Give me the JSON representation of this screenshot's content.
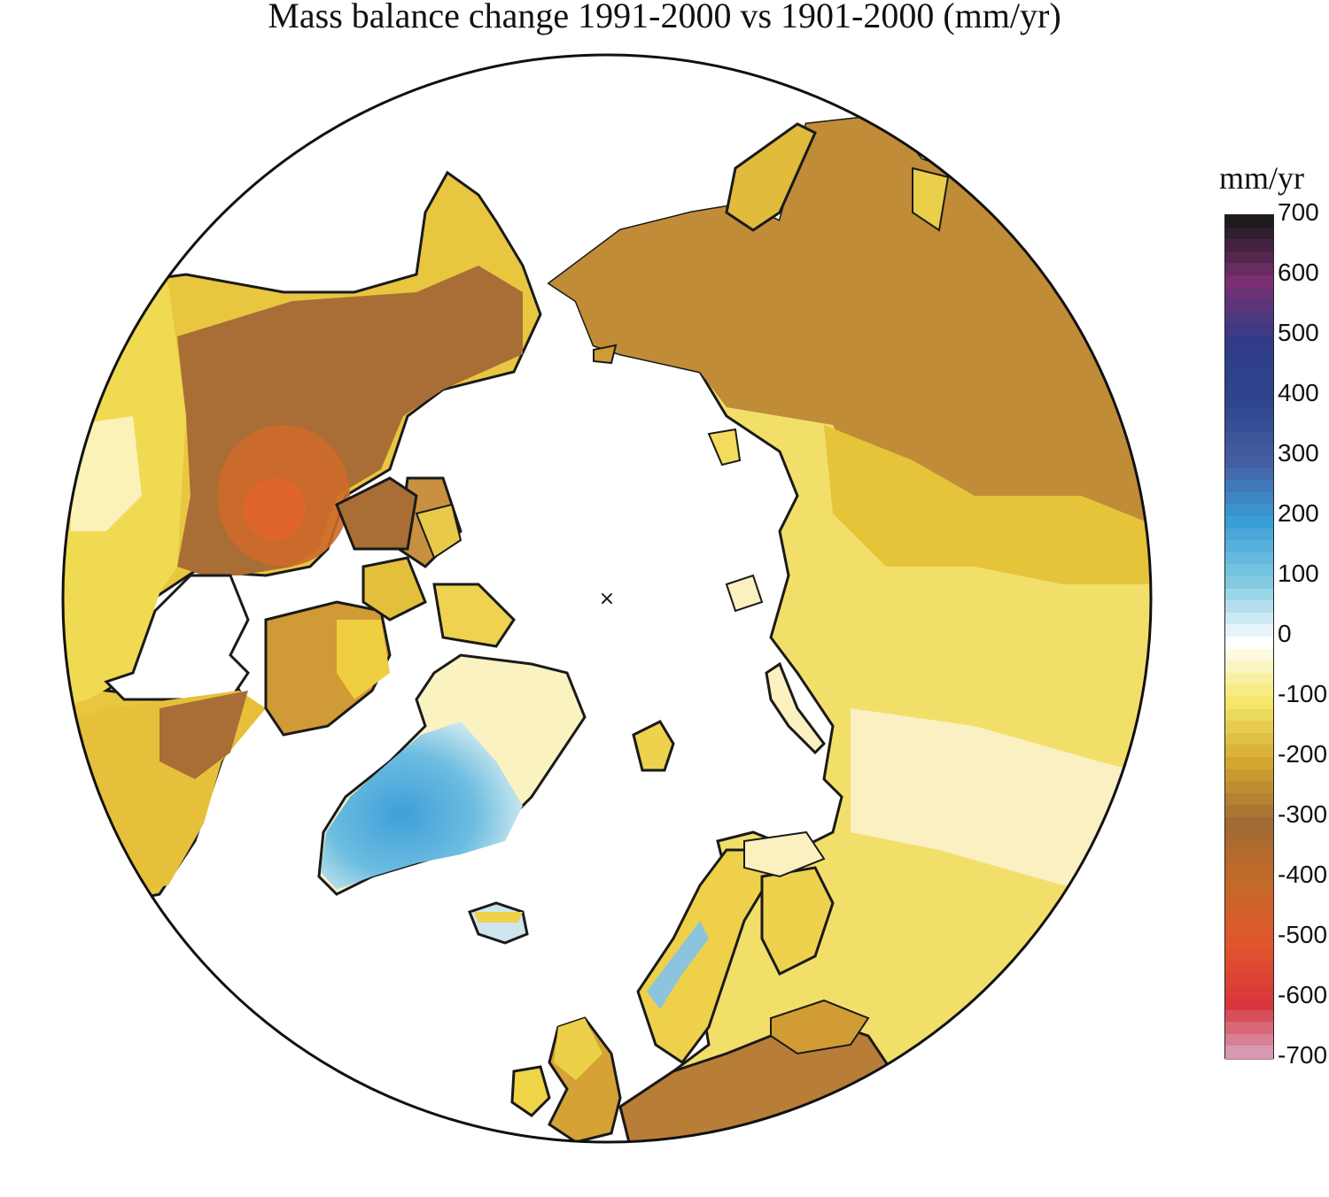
{
  "title": "Mass balance change 1991-2000 vs 1901-2000 (mm/yr)",
  "legend": {
    "units": "mm/yr",
    "ticks": [
      "700",
      "600",
      "500",
      "400",
      "300",
      "200",
      "100",
      "0",
      "-100",
      "-200",
      "-300",
      "-400",
      "-500",
      "-600",
      "-700"
    ],
    "range": [
      -700,
      700
    ],
    "colors": {
      "700": "#1e1a1e",
      "600": "#7a3070",
      "500": "#303c88",
      "400": "#2e458d",
      "300": "#445ea3",
      "200": "#3a9fd8",
      "100": "#83c9e2",
      "0": "#ffffff",
      "-100": "#f4e666",
      "-200": "#d3a62e",
      "-300": "#a06a34",
      "-400": "#c46a28",
      "-500": "#e0562c",
      "-600": "#d8363c",
      "-700": "#d8b0d0"
    }
  },
  "map": {
    "projection": "north-polar-stereographic",
    "pole_marker": "×",
    "ocean_color": "#ffffff",
    "coastline_color": "#1a1a1a"
  }
}
